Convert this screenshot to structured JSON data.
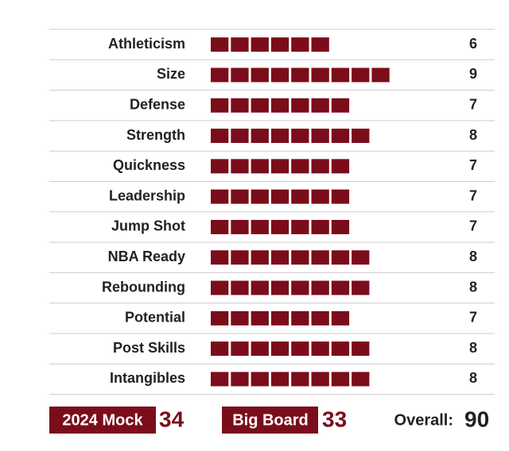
{
  "chart_data": {
    "type": "bar",
    "categories": [
      "Athleticism",
      "Size",
      "Defense",
      "Strength",
      "Quickness",
      "Leadership",
      "Jump Shot",
      "NBA Ready",
      "Rebounding",
      "Potential",
      "Post Skills",
      "Intangibles"
    ],
    "values": [
      6,
      9,
      7,
      8,
      7,
      7,
      7,
      8,
      8,
      7,
      8,
      8
    ],
    "color": "#7b0d1b"
  },
  "footer": {
    "mock_label": "2024 Mock",
    "mock_value": 34,
    "board_label": "Big Board",
    "board_value": 33,
    "overall_label": "Overall:",
    "overall_value": 90
  }
}
